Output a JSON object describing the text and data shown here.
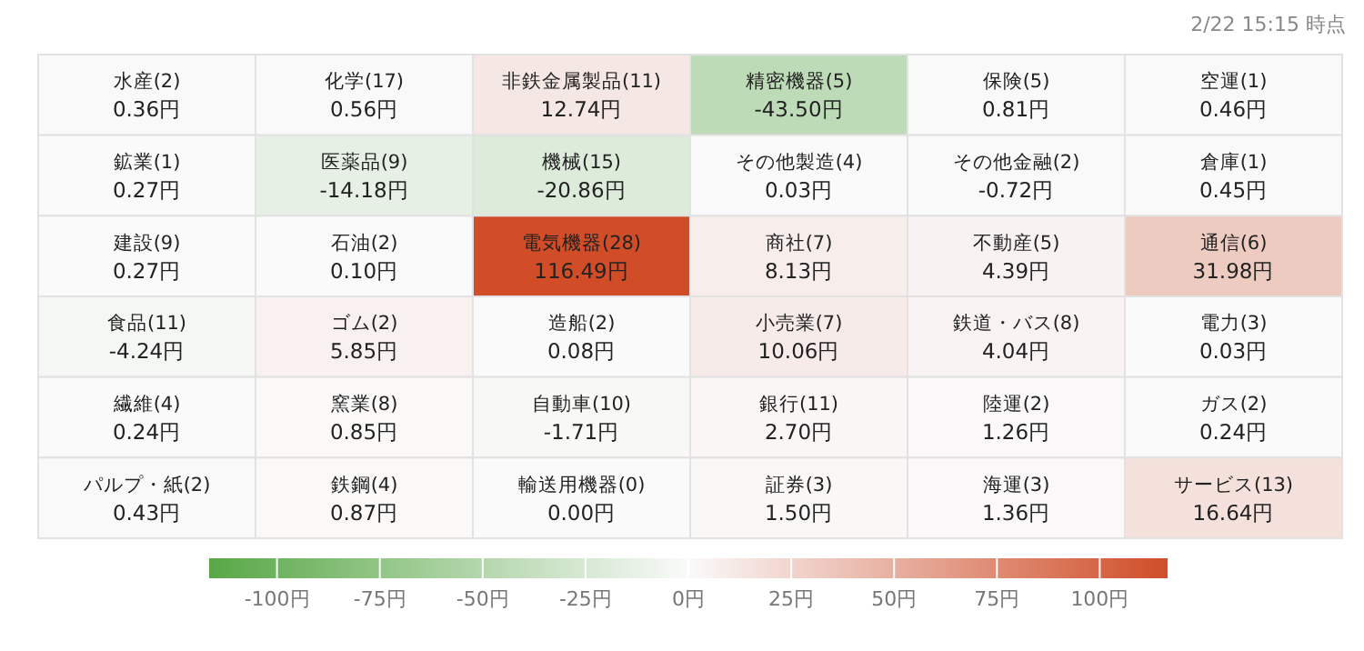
{
  "chart_data": {
    "type": "heatmap",
    "annotations": [
      "2/22 15:15 時点"
    ],
    "categories": [
      null,
      null,
      null,
      null,
      null,
      null
    ],
    "y_categories": [
      null,
      null,
      null,
      null,
      null,
      null
    ],
    "cells": [
      [
        0.36,
        0.56,
        12.74,
        -43.5,
        0.81,
        0.46
      ],
      [
        0.27,
        -14.18,
        -20.86,
        0.03,
        -0.72,
        0.45
      ],
      [
        0.27,
        0.1,
        116.49,
        8.13,
        4.39,
        31.98
      ],
      [
        -4.24,
        5.85,
        0.08,
        10.06,
        4.04,
        0.03
      ],
      [
        0.24,
        0.85,
        -1.71,
        2.7,
        1.26,
        0.24
      ],
      [
        0.43,
        0.87,
        0.0,
        1.5,
        1.36,
        16.64
      ]
    ],
    "cell_labels": [
      [
        "水産(2)\n0.36円",
        "化学(17)\n0.56円",
        "非鉄金属製品(11)\n12.74円",
        "精密機器(5)\n-43.50円",
        "保険(5)\n0.81円",
        "空運(1)\n0.46円"
      ],
      [
        "鉱業(1)\n0.27円",
        "医薬品(9)\n-14.18円",
        "機械(15)\n-20.86円",
        "その他製造(4)\n0.03円",
        "その他金融(2)\n-0.72円",
        "倉庫(1)\n0.45円"
      ],
      [
        "建設(9)\n0.27円",
        "石油(2)\n0.10円",
        "電気機器(28)\n116.49円",
        "商社(7)\n8.13円",
        "不動産(5)\n4.39円",
        "通信(6)\n31.98円"
      ],
      [
        "食品(11)\n-4.24円",
        "ゴム(2)\n5.85円",
        "造船(2)\n0.08円",
        "小売業(7)\n10.06円",
        "鉄道・バス(8)\n4.04円",
        "電力(3)\n0.03円"
      ],
      [
        "繊維(4)\n0.24円",
        "窯業(8)\n0.85円",
        "自動車(10)\n-1.71円",
        "銀行(11)\n2.70円",
        "陸運(2)\n1.26円",
        "ガス(2)\n0.24円"
      ],
      [
        "パルプ・紙(2)\n0.43円",
        "鉄鋼(4)\n0.87円",
        "輸送用機器(0)\n0.00円",
        "証券(3)\n1.50円",
        "海運(3)\n1.36円",
        "サービス(13)\n16.64円"
      ]
    ],
    "clim": [
      -116.49,
      116.49
    ],
    "cticks": [
      {
        "value": -100,
        "label": "-100円"
      },
      {
        "value": -75,
        "label": "-75円"
      },
      {
        "value": -50,
        "label": "-50円"
      },
      {
        "value": -25,
        "label": "-25円"
      },
      {
        "value": 0,
        "label": "0円"
      },
      {
        "value": 25,
        "label": "25円"
      },
      {
        "value": 50,
        "label": "50円"
      },
      {
        "value": 75,
        "label": "75円"
      },
      {
        "value": 100,
        "label": "100円"
      }
    ]
  }
}
